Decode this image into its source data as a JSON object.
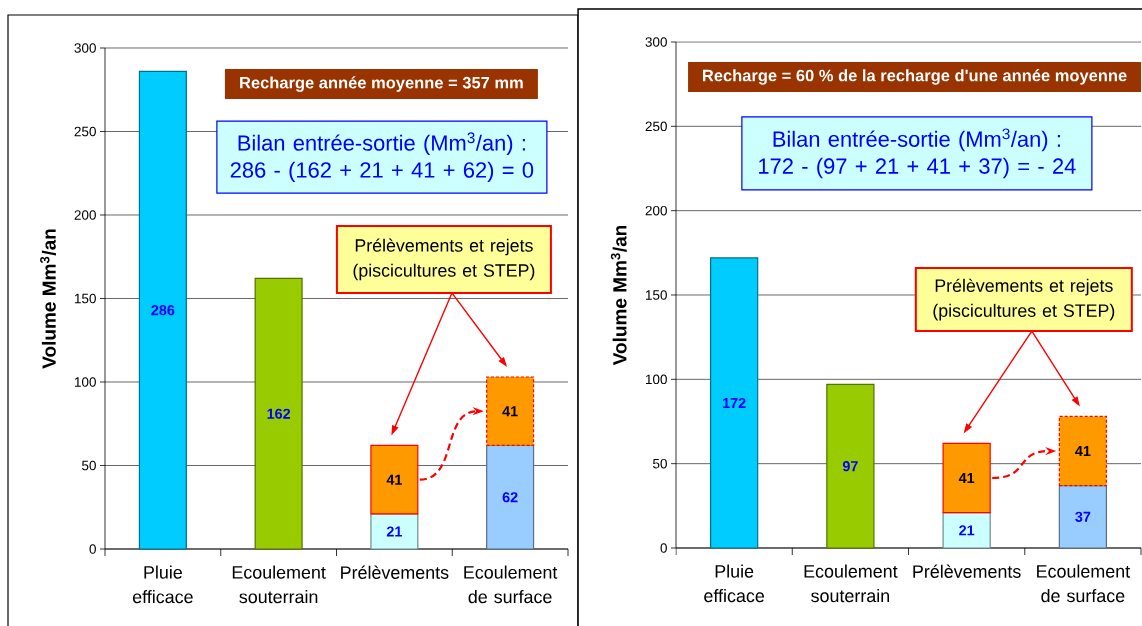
{
  "chart_data": [
    {
      "type": "bar",
      "stacked": true,
      "ylabel": "Volume Mm$^{3}$/an",
      "categories": [
        "Pluie efficace",
        "Ecoulement souterrain",
        "Prélèvements",
        "Ecoulement de surface"
      ],
      "series": [
        {
          "values": [
            286,
            162,
            21,
            62
          ],
          "colors": [
            "#00ccff",
            "#99cc00",
            "#ccffff",
            "#99ccff"
          ]
        },
        {
          "values": [
            null,
            null,
            41,
            41
          ],
          "colors": [
            "#ff9900",
            "#ff9900",
            "#ff9900",
            "#ff9900"
          ]
        }
      ],
      "ylim": [
        0,
        300
      ],
      "yticks": [
        0,
        50,
        100,
        150,
        200,
        250,
        300
      ],
      "grid": "y",
      "data_labels": true,
      "annotations": [
        "Recharge année moyenne = 357 mm",
        "Bilan entrée-sortie (Mm$^{3}$/an) : 286 - (162 + 21 + 41 + 62) = 0",
        "Prélèvements et rejets (piscicultures et STEP)"
      ]
    },
    {
      "type": "bar",
      "stacked": true,
      "ylabel": "Volume Mm$^{3}$/an",
      "categories": [
        "Pluie efficace",
        "Ecoulement souterrain",
        "Prélèvements",
        "Ecoulement de surface"
      ],
      "series": [
        {
          "values": [
            172,
            97,
            21,
            37
          ],
          "colors": [
            "#00ccff",
            "#99cc00",
            "#ccffff",
            "#99ccff"
          ]
        },
        {
          "values": [
            null,
            null,
            41,
            41
          ],
          "colors": [
            "#ff9900",
            "#ff9900",
            "#ff9900",
            "#ff9900"
          ]
        }
      ],
      "ylim": [
        0,
        300
      ],
      "yticks": [
        0,
        50,
        100,
        150,
        200,
        250,
        300
      ],
      "grid": "y",
      "data_labels": true,
      "annotations": [
        "Recharge = 60 % de la recharge d'une année moyenne",
        "Bilan entrée-sortie (Mm$^{3}$/an) : 172 - (97 + 21 + 41 + 37) = - 24",
        "Prélèvements et rejets (piscicultures et STEP)"
      ]
    }
  ]
}
